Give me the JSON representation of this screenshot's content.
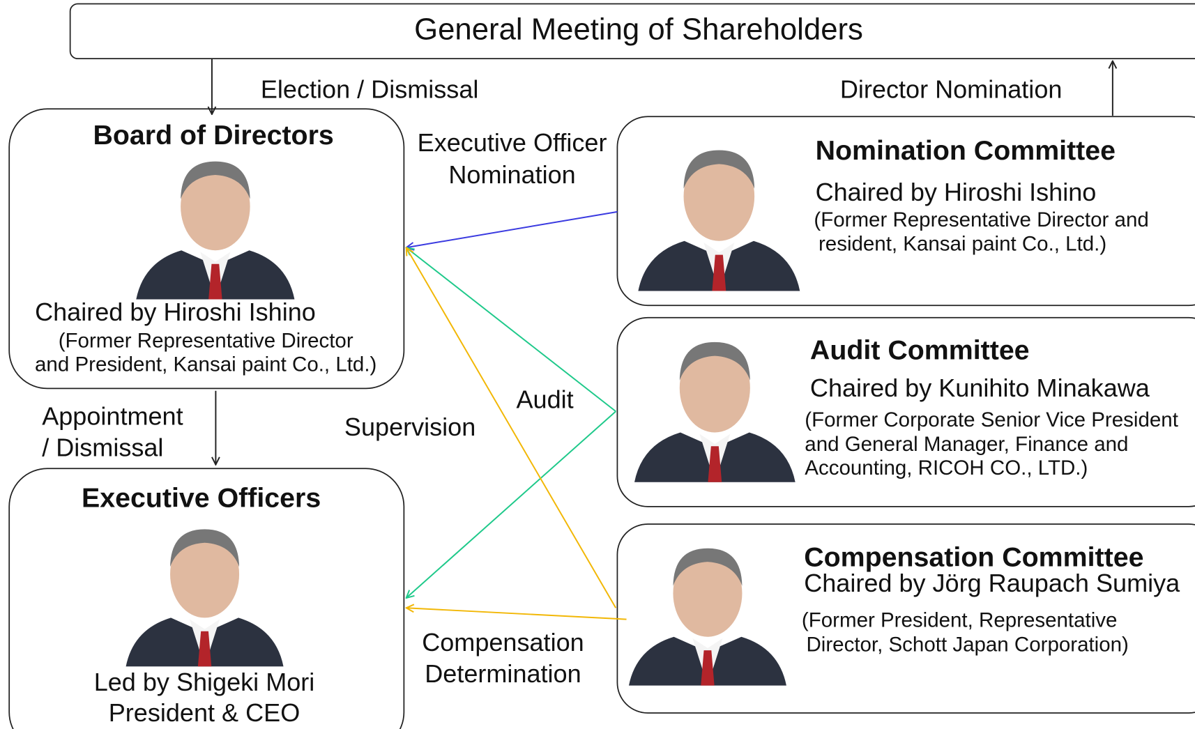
{
  "header": {
    "title": "General Meeting of Shareholders"
  },
  "edges": [
    {
      "label": [
        "Election / Dismissal"
      ]
    },
    {
      "label": [
        "Director Nomination"
      ]
    },
    {
      "label": [
        "Executive Officer",
        "Nomination"
      ]
    },
    {
      "label": [
        "Audit"
      ]
    },
    {
      "label": [
        "Supervision"
      ]
    },
    {
      "label": [
        "Appointment",
        "/ Dismissal"
      ]
    },
    {
      "label": [
        "Compensation",
        "Determination"
      ]
    }
  ],
  "nodes": [
    {
      "title": "Board of Directors",
      "lines": [
        "Chaired by Hiroshi Ishino",
        "(Former Representative Director",
        "and President, Kansai paint Co., Ltd.)"
      ]
    },
    {
      "title": "Executive Officers",
      "lines": [
        "Led by Shigeki Mori",
        "President & CEO"
      ]
    },
    {
      "title": "Nomination Committee",
      "lines": [
        "Chaired by Hiroshi Ishino",
        "(Former Representative Director and",
        "resident, Kansai paint Co., Ltd.)"
      ]
    },
    {
      "title": "Audit Committee",
      "lines": [
        "Chaired by Kunihito Minakawa",
        "(Former Corporate Senior Vice President",
        "and General Manager, Finance and",
        "Accounting, RICOH CO., LTD.)"
      ]
    },
    {
      "title": "Compensation Committee",
      "lines": [
        "Chaired by Jörg Raupach Sumiya",
        "(Former President, Representative",
        "Director, Schott Japan Corporation)"
      ]
    }
  ]
}
